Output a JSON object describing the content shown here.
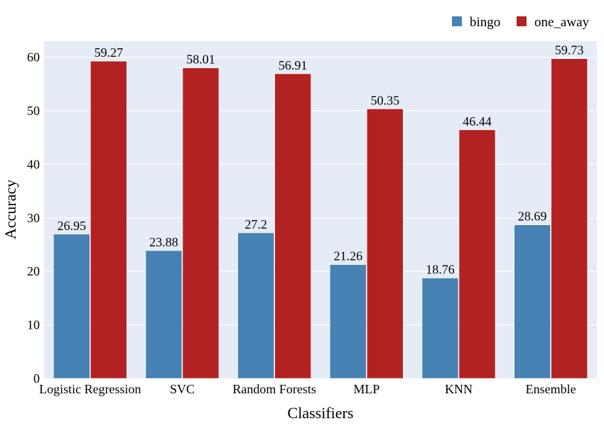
{
  "chart_data": {
    "type": "bar",
    "categories": [
      "Logistic Regression",
      "SVC",
      "Random Forests",
      "MLP",
      "KNN",
      "Ensemble"
    ],
    "series": [
      {
        "name": "bingo",
        "values": [
          26.95,
          23.88,
          27.2,
          21.26,
          18.76,
          28.69
        ],
        "color": "#4682b4"
      },
      {
        "name": "one_away",
        "values": [
          59.27,
          58.01,
          56.91,
          50.35,
          46.44,
          59.73
        ],
        "color": "#b22222"
      }
    ],
    "xlabel": "Classifiers",
    "ylabel": "Accuracy",
    "ylim": [
      0,
      63
    ],
    "yticks": [
      0,
      10,
      20,
      30,
      40,
      50,
      60
    ],
    "grid": true,
    "legend_position": "top-right",
    "plot_background": "#e5ecf6"
  }
}
